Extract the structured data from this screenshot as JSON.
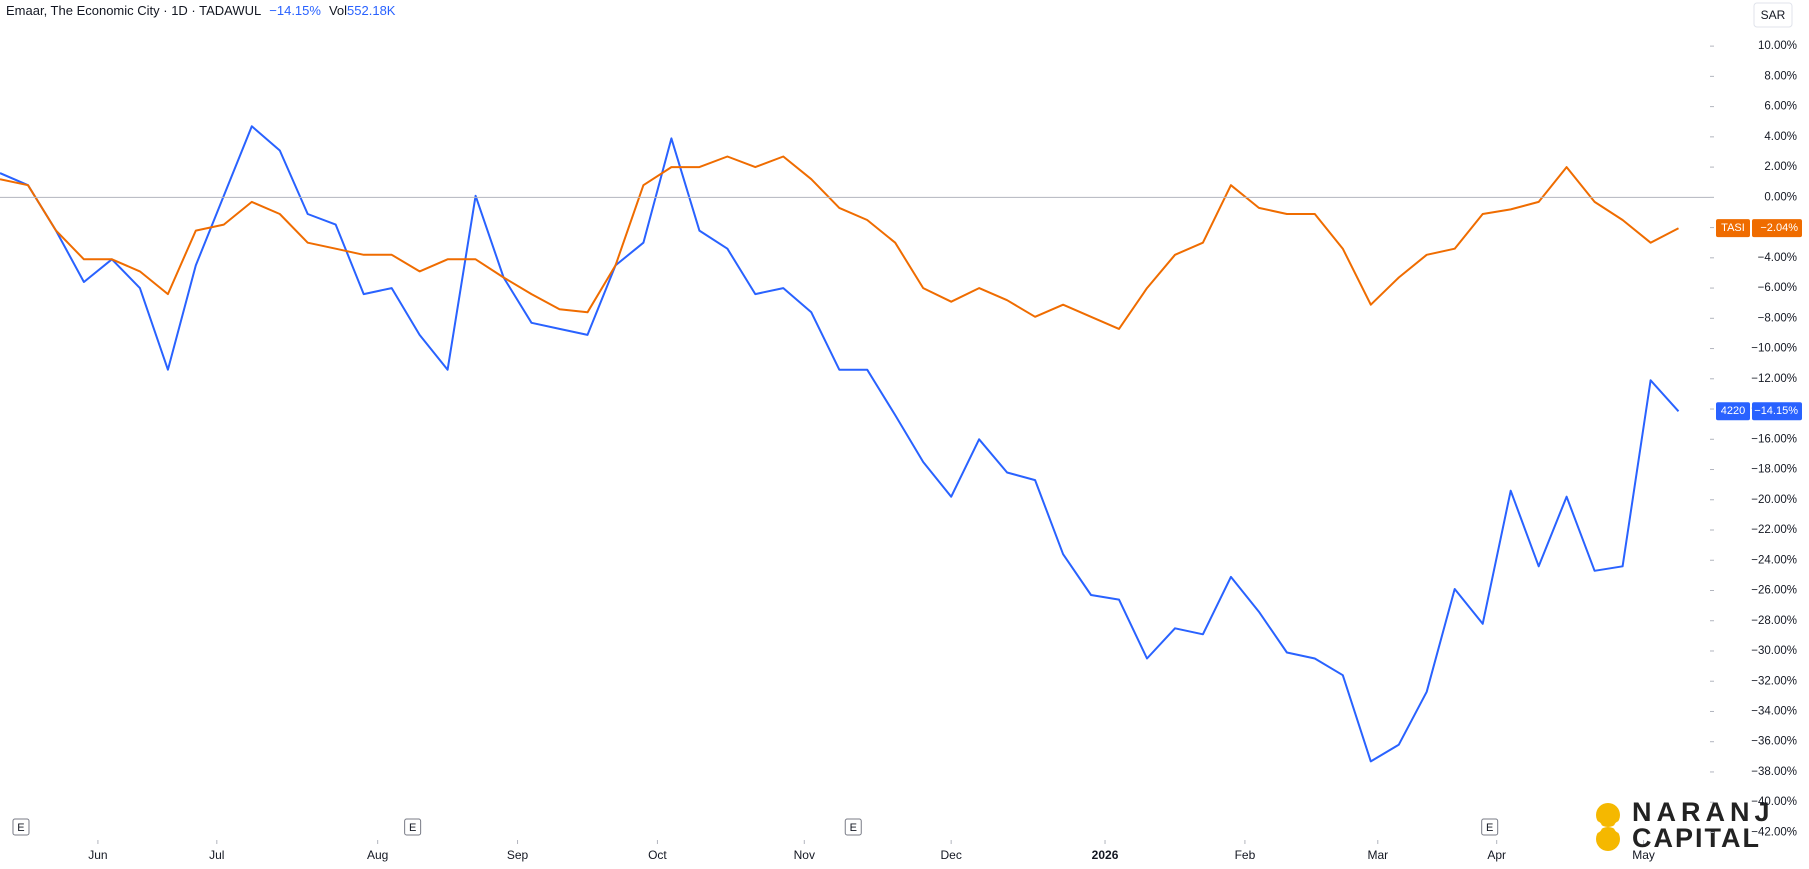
{
  "header": {
    "symbol": "Emaar, The Economic City · 1D · TADAWUL",
    "change": "−14.15%",
    "vol_label": "Vol",
    "vol_value": "552.18K",
    "currency": "SAR"
  },
  "logo": {
    "line1": "NARANJ",
    "line2": "CAPITAL"
  },
  "chart_data": {
    "type": "line",
    "x": [
      0,
      4,
      8,
      12,
      16,
      20,
      24,
      28,
      32,
      36,
      40,
      44,
      48,
      52,
      56,
      60,
      64,
      68,
      72,
      76,
      80,
      84,
      88,
      92,
      96,
      100,
      104,
      108,
      112,
      116,
      120,
      124,
      128,
      132,
      136,
      140,
      144,
      148,
      152,
      156,
      160,
      164,
      168,
      172,
      176,
      180,
      184,
      188,
      192,
      196,
      200,
      204,
      208,
      212,
      216,
      220,
      224,
      228,
      232,
      236,
      240
    ],
    "series": [
      {
        "name": "4220",
        "color": "#2962ff",
        "last_value_label": "−14.15%",
        "values": [
          1.6,
          0.8,
          -2.2,
          -5.6,
          -4.1,
          -6.0,
          -11.4,
          -4.5,
          0.1,
          4.7,
          3.1,
          -1.1,
          -1.8,
          -6.4,
          -6.0,
          -9.1,
          -11.4,
          0.1,
          -5.3,
          -8.3,
          -8.7,
          -9.1,
          -4.5,
          -3.0,
          3.9,
          -2.2,
          -3.4,
          -6.4,
          -6.0,
          -7.6,
          -11.4,
          -11.4,
          -14.4,
          -17.5,
          -19.8,
          -16.0,
          -18.2,
          -18.7,
          -23.6,
          -26.3,
          -26.6,
          -30.5,
          -28.5,
          -28.9,
          -25.1,
          -27.4,
          -30.1,
          -30.5,
          -31.6,
          -37.3,
          -36.2,
          -32.7,
          -25.9,
          -28.2,
          -19.4,
          -24.4,
          -19.8,
          -24.7,
          -24.4,
          -12.1,
          -14.15
        ]
      },
      {
        "name": "TASI",
        "color": "#ef6c00",
        "last_value_label": "−2.04%",
        "values": [
          1.2,
          0.8,
          -2.2,
          -4.1,
          -4.1,
          -4.9,
          -6.4,
          -2.2,
          -1.8,
          -0.3,
          -1.1,
          -3.0,
          -3.4,
          -3.8,
          -3.8,
          -4.9,
          -4.1,
          -4.1,
          -5.3,
          -6.4,
          -7.4,
          -7.6,
          -4.5,
          0.8,
          2.0,
          2.0,
          2.7,
          2.0,
          2.7,
          1.2,
          -0.7,
          -1.5,
          -3.0,
          -6.0,
          -6.9,
          -6.0,
          -6.8,
          -7.9,
          -7.1,
          -7.9,
          -8.7,
          -6.0,
          -3.8,
          -3.0,
          0.8,
          -0.7,
          -1.1,
          -1.1,
          -3.4,
          -7.1,
          -5.3,
          -3.8,
          -3.4,
          -1.1,
          -0.8,
          -0.3,
          2.0,
          -0.3,
          -1.5,
          -3.0,
          -2.04
        ]
      }
    ],
    "xlim": [
      0,
      244.5
    ],
    "xticks": [
      {
        "value": 14,
        "label": "Jun"
      },
      {
        "value": 31,
        "label": "Jul"
      },
      {
        "value": 54,
        "label": "Aug"
      },
      {
        "value": 74,
        "label": "Sep"
      },
      {
        "value": 94,
        "label": "Oct"
      },
      {
        "value": 115,
        "label": "Nov"
      },
      {
        "value": 136,
        "label": "Dec"
      },
      {
        "value": 158,
        "label": "2026"
      },
      {
        "value": 178,
        "label": "Feb"
      },
      {
        "value": 197,
        "label": "Mar"
      },
      {
        "value": 214,
        "label": "Apr"
      },
      {
        "value": 235,
        "label": "May"
      }
    ],
    "ylim": [
      -42.5,
      13.05
    ],
    "yticks": [
      {
        "value": 10,
        "label": "10.00%"
      },
      {
        "value": 8,
        "label": "8.00%"
      },
      {
        "value": 6,
        "label": "6.00%"
      },
      {
        "value": 4,
        "label": "4.00%"
      },
      {
        "value": 2,
        "label": "2.00%"
      },
      {
        "value": 0,
        "label": "0.00%"
      },
      {
        "value": -2,
        "label": "−2.00%"
      },
      {
        "value": -4,
        "label": "−4.00%"
      },
      {
        "value": -6,
        "label": "−6.00%"
      },
      {
        "value": -8,
        "label": "−8.00%"
      },
      {
        "value": -10,
        "label": "−10.00%"
      },
      {
        "value": -12,
        "label": "−12.00%"
      },
      {
        "value": -14,
        "label": "−14.00%"
      },
      {
        "value": -16,
        "label": "−16.00%"
      },
      {
        "value": -18,
        "label": "−18.00%"
      },
      {
        "value": -20,
        "label": "−20.00%"
      },
      {
        "value": -22,
        "label": "−22.00%"
      },
      {
        "value": -24,
        "label": "−24.00%"
      },
      {
        "value": -26,
        "label": "−26.00%"
      },
      {
        "value": -28,
        "label": "−28.00%"
      },
      {
        "value": -30,
        "label": "−30.00%"
      },
      {
        "value": -32,
        "label": "−32.00%"
      },
      {
        "value": -34,
        "label": "−34.00%"
      },
      {
        "value": -36,
        "label": "−36.00%"
      },
      {
        "value": -38,
        "label": "−38.00%"
      },
      {
        "value": -40,
        "label": "−40.00%"
      },
      {
        "value": -42,
        "label": "−42.00%"
      }
    ],
    "baseline": 0,
    "events": [
      {
        "x": 3,
        "label": "E"
      },
      {
        "x": 59,
        "label": "E"
      },
      {
        "x": 122,
        "label": "E"
      },
      {
        "x": 213,
        "label": "E"
      }
    ]
  }
}
